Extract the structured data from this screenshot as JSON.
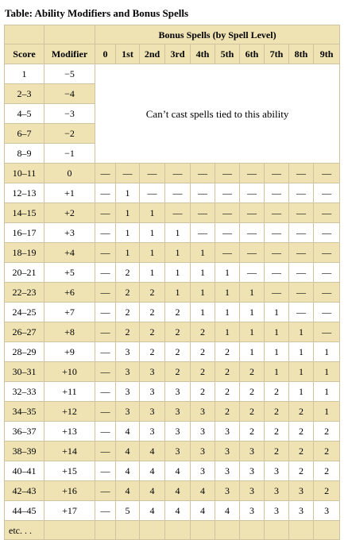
{
  "caption": "Table: Ability Modifiers and Bonus Spells",
  "header": {
    "group": "Bonus Spells (by Spell Level)",
    "score": "Score",
    "modifier": "Modifier",
    "levels": [
      "0",
      "1st",
      "2nd",
      "3rd",
      "4th",
      "5th",
      "6th",
      "7th",
      "8th",
      "9th"
    ]
  },
  "no_spells_text": "Can’t cast spells tied to this ability",
  "no_spell_rows": [
    {
      "score": "1",
      "mod": "−5"
    },
    {
      "score": "2–3",
      "mod": "−4"
    },
    {
      "score": "4–5",
      "mod": "−3"
    },
    {
      "score": "6–7",
      "mod": "−2"
    },
    {
      "score": "8–9",
      "mod": "−1"
    }
  ],
  "spell_rows": [
    {
      "score": "10–11",
      "mod": "0",
      "spells": [
        "—",
        "—",
        "—",
        "—",
        "—",
        "—",
        "—",
        "—",
        "—",
        "—"
      ]
    },
    {
      "score": "12–13",
      "mod": "+1",
      "spells": [
        "—",
        "1",
        "—",
        "—",
        "—",
        "—",
        "—",
        "—",
        "—",
        "—"
      ]
    },
    {
      "score": "14–15",
      "mod": "+2",
      "spells": [
        "—",
        "1",
        "1",
        "—",
        "—",
        "—",
        "—",
        "—",
        "—",
        "—"
      ]
    },
    {
      "score": "16–17",
      "mod": "+3",
      "spells": [
        "—",
        "1",
        "1",
        "1",
        "—",
        "—",
        "—",
        "—",
        "—",
        "—"
      ]
    },
    {
      "score": "18–19",
      "mod": "+4",
      "spells": [
        "—",
        "1",
        "1",
        "1",
        "1",
        "—",
        "—",
        "—",
        "—",
        "—"
      ]
    },
    {
      "score": "20–21",
      "mod": "+5",
      "spells": [
        "—",
        "2",
        "1",
        "1",
        "1",
        "1",
        "—",
        "—",
        "—",
        "—"
      ]
    },
    {
      "score": "22–23",
      "mod": "+6",
      "spells": [
        "—",
        "2",
        "2",
        "1",
        "1",
        "1",
        "1",
        "—",
        "—",
        "—"
      ]
    },
    {
      "score": "24–25",
      "mod": "+7",
      "spells": [
        "—",
        "2",
        "2",
        "2",
        "1",
        "1",
        "1",
        "1",
        "—",
        "—"
      ]
    },
    {
      "score": "26–27",
      "mod": "+8",
      "spells": [
        "—",
        "2",
        "2",
        "2",
        "2",
        "1",
        "1",
        "1",
        "1",
        "—"
      ]
    },
    {
      "score": "28–29",
      "mod": "+9",
      "spells": [
        "—",
        "3",
        "2",
        "2",
        "2",
        "2",
        "1",
        "1",
        "1",
        "1"
      ]
    },
    {
      "score": "30–31",
      "mod": "+10",
      "spells": [
        "—",
        "3",
        "3",
        "2",
        "2",
        "2",
        "2",
        "1",
        "1",
        "1"
      ]
    },
    {
      "score": "32–33",
      "mod": "+11",
      "spells": [
        "—",
        "3",
        "3",
        "3",
        "2",
        "2",
        "2",
        "2",
        "1",
        "1"
      ]
    },
    {
      "score": "34–35",
      "mod": "+12",
      "spells": [
        "—",
        "3",
        "3",
        "3",
        "3",
        "2",
        "2",
        "2",
        "2",
        "1"
      ]
    },
    {
      "score": "36–37",
      "mod": "+13",
      "spells": [
        "—",
        "4",
        "3",
        "3",
        "3",
        "3",
        "2",
        "2",
        "2",
        "2"
      ]
    },
    {
      "score": "38–39",
      "mod": "+14",
      "spells": [
        "—",
        "4",
        "4",
        "3",
        "3",
        "3",
        "3",
        "2",
        "2",
        "2"
      ]
    },
    {
      "score": "40–41",
      "mod": "+15",
      "spells": [
        "—",
        "4",
        "4",
        "4",
        "3",
        "3",
        "3",
        "3",
        "2",
        "2"
      ]
    },
    {
      "score": "42–43",
      "mod": "+16",
      "spells": [
        "—",
        "4",
        "4",
        "4",
        "4",
        "3",
        "3",
        "3",
        "3",
        "2"
      ]
    },
    {
      "score": "44–45",
      "mod": "+17",
      "spells": [
        "—",
        "5",
        "4",
        "4",
        "4",
        "4",
        "3",
        "3",
        "3",
        "3"
      ]
    }
  ],
  "etc_label": "etc. . ."
}
